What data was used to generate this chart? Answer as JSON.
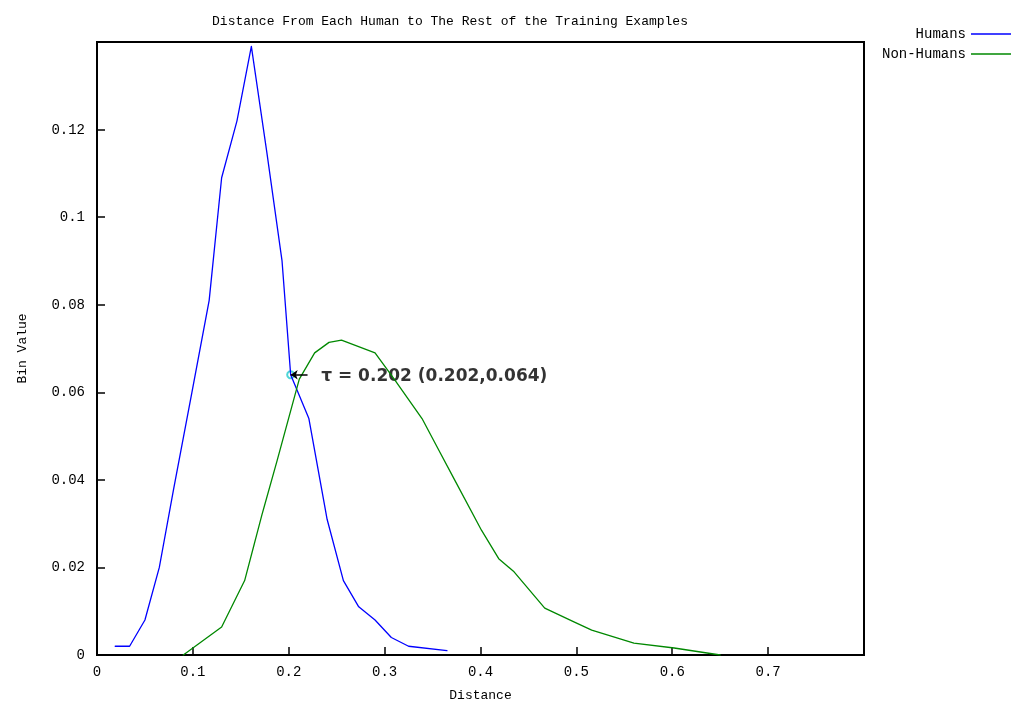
{
  "chart_data": {
    "type": "line",
    "title": "Distance From Each Human to The Rest of the Training Examples",
    "xlabel": "Distance",
    "ylabel": "Bin Value",
    "xlim": [
      0,
      0.8
    ],
    "ylim": [
      0,
      0.14
    ],
    "xticks": [
      0,
      0.1,
      0.2,
      0.3,
      0.4,
      0.5,
      0.6,
      0.7
    ],
    "yticks": [
      0,
      0.02,
      0.04,
      0.06,
      0.08,
      0.1,
      0.12
    ],
    "grid": false,
    "legend": "top right",
    "annotations": [
      {
        "text": "τ = 0.202 (0.202,0.064)",
        "x": 0.202,
        "y": 0.064
      }
    ],
    "series": [
      {
        "name": "Humans",
        "color": "#0000ff",
        "x": [
          0.019,
          0.034,
          0.05,
          0.065,
          0.08,
          0.099,
          0.117,
          0.13,
          0.146,
          0.161,
          0.177,
          0.193,
          0.202,
          0.221,
          0.24,
          0.257,
          0.273,
          0.29,
          0.307,
          0.325,
          0.365
        ],
        "values": [
          0.002,
          0.002,
          0.008,
          0.02,
          0.038,
          0.06,
          0.081,
          0.109,
          0.122,
          0.139,
          0.115,
          0.09,
          0.064,
          0.054,
          0.031,
          0.017,
          0.011,
          0.008,
          0.004,
          0.002,
          0.001
        ]
      },
      {
        "name": "Non-Humans",
        "color": "#008800",
        "x": [
          0.09,
          0.13,
          0.154,
          0.172,
          0.188,
          0.211,
          0.227,
          0.242,
          0.255,
          0.29,
          0.31,
          0.339,
          0.356,
          0.373,
          0.401,
          0.419,
          0.435,
          0.467,
          0.498,
          0.516,
          0.56,
          0.602,
          0.65
        ],
        "values": [
          0,
          0.0064,
          0.017,
          0.032,
          0.0445,
          0.063,
          0.069,
          0.0714,
          0.0719,
          0.069,
          0.063,
          0.054,
          0.047,
          0.04,
          0.0285,
          0.022,
          0.019,
          0.0107,
          0.0075,
          0.0057,
          0.0027,
          0.0016,
          0
        ]
      }
    ]
  }
}
